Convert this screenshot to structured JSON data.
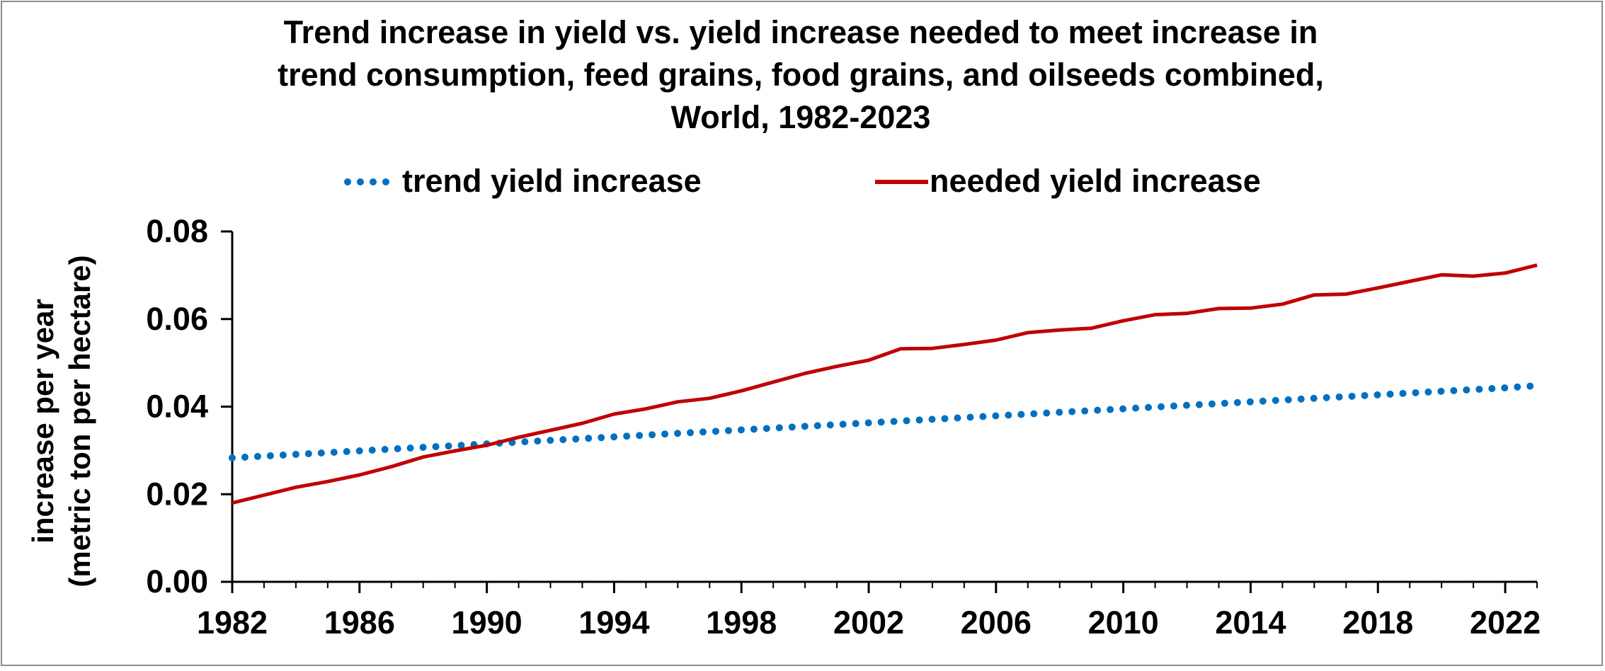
{
  "chart_data": {
    "type": "line",
    "title_lines": [
      "Trend increase in yield vs. yield increase needed to meet increase in",
      "trend consumption,  feed grains, food grains, and oilseeds combined,",
      "World, 1982-2023"
    ],
    "ylabel_lines": [
      "increase per year",
      "(metric ton per hectare)"
    ],
    "xlabel": "",
    "xlim": [
      1982,
      2023
    ],
    "ylim": [
      0,
      0.08
    ],
    "y_ticks": [
      "0.00",
      "0.02",
      "0.04",
      "0.06",
      "0.08"
    ],
    "x_ticks": [
      "1982",
      "1986",
      "1990",
      "1994",
      "1998",
      "2002",
      "2006",
      "2010",
      "2014",
      "2018",
      "2022"
    ],
    "grid": false,
    "legend_position": "top",
    "x": [
      1982,
      1983,
      1984,
      1985,
      1986,
      1987,
      1988,
      1989,
      1990,
      1991,
      1992,
      1993,
      1994,
      1995,
      1996,
      1997,
      1998,
      1999,
      2000,
      2001,
      2002,
      2003,
      2004,
      2005,
      2006,
      2007,
      2008,
      2009,
      2010,
      2011,
      2012,
      2013,
      2014,
      2015,
      2016,
      2017,
      2018,
      2019,
      2020,
      2021,
      2022,
      2023
    ],
    "series": [
      {
        "name": "trend yield increase",
        "style": "dotted",
        "color": "#0070c0",
        "values": [
          0.0283,
          0.0287,
          0.0291,
          0.0295,
          0.0299,
          0.0303,
          0.0307,
          0.0311,
          0.0315,
          0.0319,
          0.0323,
          0.0327,
          0.0331,
          0.0335,
          0.0339,
          0.0343,
          0.0347,
          0.0351,
          0.0355,
          0.0359,
          0.0363,
          0.0367,
          0.0371,
          0.0375,
          0.0379,
          0.0383,
          0.0387,
          0.0391,
          0.0395,
          0.0399,
          0.0403,
          0.0407,
          0.0411,
          0.0415,
          0.0419,
          0.0423,
          0.0427,
          0.0431,
          0.0435,
          0.0439,
          0.0443,
          0.0448
        ]
      },
      {
        "name": "needed yield increase",
        "style": "solid",
        "color": "#c00000",
        "values": [
          0.018,
          0.0198,
          0.0216,
          0.0229,
          0.0244,
          0.0263,
          0.0285,
          0.0299,
          0.0312,
          0.033,
          0.0346,
          0.0362,
          0.0383,
          0.0395,
          0.0411,
          0.0419,
          0.0436,
          0.0456,
          0.0476,
          0.0492,
          0.0506,
          0.0532,
          0.0533,
          0.0542,
          0.0552,
          0.0569,
          0.0575,
          0.0579,
          0.0596,
          0.061,
          0.0613,
          0.0624,
          0.0625,
          0.0634,
          0.0655,
          0.0657,
          0.0671,
          0.0686,
          0.0701,
          0.0698,
          0.0705,
          0.0723
        ]
      }
    ]
  }
}
